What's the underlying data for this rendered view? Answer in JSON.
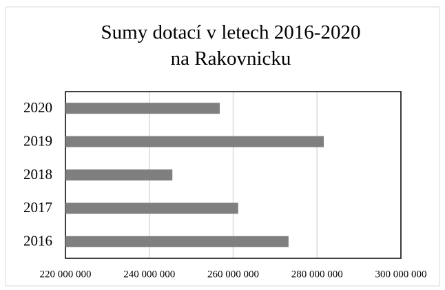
{
  "chart_data": {
    "type": "barh",
    "title": "Sumy dotací v letech 2016-2020 na Rakovnicku",
    "categories": [
      "2016",
      "2017",
      "2018",
      "2019",
      "2020"
    ],
    "values": [
      273200000,
      261200000,
      245500000,
      281600000,
      256800000
    ],
    "color": "#7f7f7f",
    "xlim": [
      220000000,
      300000000
    ],
    "xticks": [
      {
        "value": 220000000,
        "label": "220 000 000"
      },
      {
        "value": 240000000,
        "label": "240 000 000"
      },
      {
        "value": 260000000,
        "label": "260 000 000"
      },
      {
        "value": 280000000,
        "label": "280 000 000"
      },
      {
        "value": 300000000,
        "label": "300 000 000"
      }
    ],
    "grid": true
  }
}
